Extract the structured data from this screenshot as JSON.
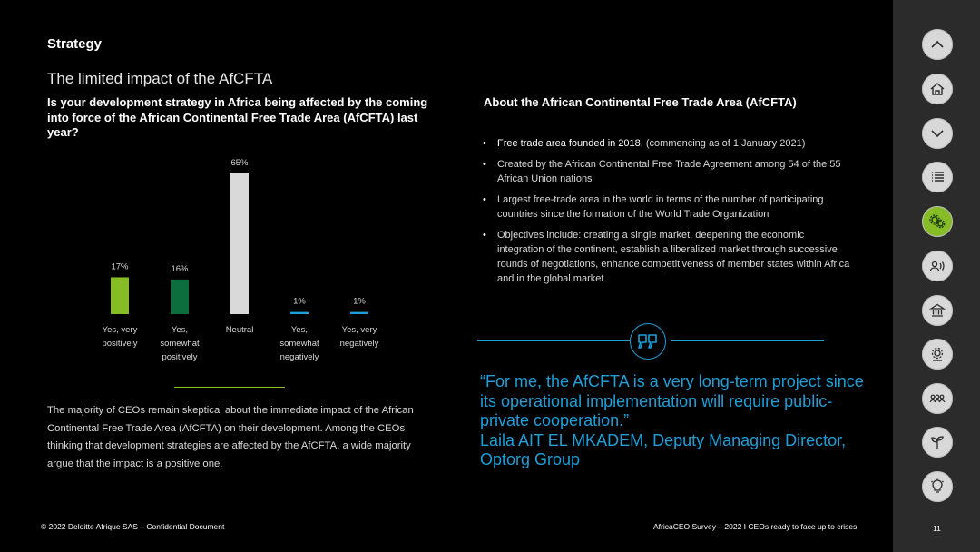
{
  "header": {
    "section": "Strategy",
    "subtitle": "The limited impact of the AfCFTA"
  },
  "question": "Is your development strategy in Africa being affected by the coming into force of the African Continental Free Trade Area (AfCFTA) last year?",
  "chart_data": {
    "type": "bar",
    "categories": [
      [
        "Yes, very",
        "positively"
      ],
      [
        "Yes,",
        "somewhat",
        "positively"
      ],
      [
        "Neutral"
      ],
      [
        "Yes,",
        "somewhat",
        "negatively"
      ],
      [
        "Yes, very",
        "negatively"
      ]
    ],
    "values": [
      17,
      16,
      65,
      1,
      1
    ],
    "data_labels": [
      "17%",
      "16%",
      "65%",
      "1%",
      "1%"
    ],
    "colors": [
      "#86bc25",
      "#0b6e3c",
      "#d9d9d9",
      "#1e9fd8",
      "#1e9fd8"
    ],
    "ylim": [
      0,
      65
    ],
    "grid": false,
    "legend": "none"
  },
  "body_text": "The majority of CEOs remain skeptical about the immediate impact of the African Continental Free Trade Area (AfCFTA) on their development. Among the CEOs thinking that development strategies are affected by the AfCFTA, a wide majority argue that the impact is a positive one.",
  "about": {
    "title": "About the African Continental Free Trade Area (AfCFTA)",
    "bullet1_em": "Free trade area founded in 2018",
    "bullet1_rest": ", (commencing as of 1 January 2021)",
    "bullet2": "Created by the African Continental Free Trade Agreement among 54 of the 55 African Union nations",
    "bullet3": "Largest free-trade area in the world in terms of the number of participating countries since the formation of the World Trade Organization",
    "bullet4": "Objectives include: creating a single market, deepening the economic integration of the continent, establish a liberalized market through successive rounds of negotiations, enhance competitiveness of member states within Africa and in the global market"
  },
  "quote": {
    "icon": "quote-marks-icon",
    "text": "“For me, the AfCFTA is a very long-term project since its operational implementation will require public-private cooperation.”",
    "attribution": "Laila AIT EL MKADEM, Deputy Managing Director, Optorg Group"
  },
  "footer": {
    "left": "© 2022 Deloitte Afrique SAS – Confidential Document",
    "right": "AfricaCEO Survey – 2022 I CEOs ready to face up to crises",
    "page": "11"
  },
  "sidebar": {
    "icons": [
      "chevron-up-icon",
      "home-icon",
      "chevron-down-icon",
      "list-icon",
      "gears-icon",
      "people-speaking-icon",
      "bank-icon",
      "settings-gear-icon",
      "people-group-icon",
      "plant-icon",
      "lightbulb-icon"
    ],
    "active": "gears-icon",
    "accent": "#86bc25"
  }
}
